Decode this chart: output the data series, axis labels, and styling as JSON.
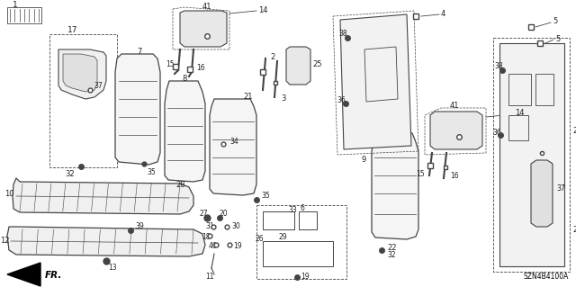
{
  "diagram_id": "SZN4B4100A",
  "bg_color": "#ffffff",
  "lc": "#444444",
  "tc": "#222222",
  "figsize": [
    6.4,
    3.19
  ],
  "dpi": 100
}
